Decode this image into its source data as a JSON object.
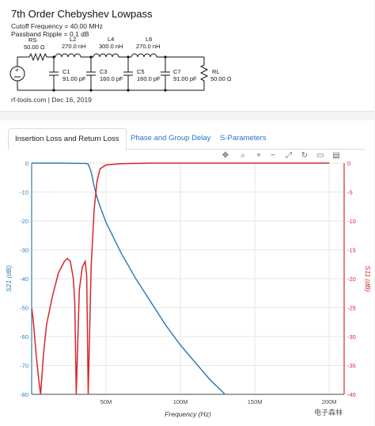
{
  "header": {
    "title": "7th Order Chebyshev Lowpass",
    "cutoff": "Cutoff Frequency = 40.00 MHz",
    "ripple": "Passband Ripple = 0.1 dB",
    "credit": "rf-tools.com | Dec 16, 2019"
  },
  "schematic": {
    "rs": {
      "name": "RS",
      "value": "50.00 Ω"
    },
    "l2": {
      "name": "L2",
      "value": "270.0 nH"
    },
    "l4": {
      "name": "L4",
      "value": "300.0 nH"
    },
    "l6": {
      "name": "L6",
      "value": "270.0 nH"
    },
    "c1": {
      "name": "C1",
      "value": "91.00 pF"
    },
    "c3": {
      "name": "C3",
      "value": "160.0 pF"
    },
    "c5": {
      "name": "C5",
      "value": "160.0 pF"
    },
    "c7": {
      "name": "C7",
      "value": "91.00 pF"
    },
    "rl": {
      "name": "RL",
      "value": "50.00 Ω"
    },
    "source_plus": "+"
  },
  "tabs": [
    {
      "label": "Insertion Loss and Return Loss",
      "active": true
    },
    {
      "label": "Phase and Group Delay",
      "active": false
    },
    {
      "label": "S-Parameters",
      "active": false
    }
  ],
  "toolbar": {
    "icons": [
      "pan-icon",
      "zoom-icon",
      "zoom-in-icon",
      "zoom-out-icon",
      "autoscale-icon",
      "reset-icon",
      "hover-icon",
      "compare-icon"
    ]
  },
  "watermark": "电子森林",
  "colors": {
    "s21": "#2f7fb5",
    "s11": "#d62728",
    "s11_axis": "#d62728",
    "s21_axis": "#2f7fb5"
  },
  "chart_data": {
    "type": "line",
    "xlabel": "Frequency (Hz)",
    "ylabel_left": "S21 (dB)",
    "ylabel_right": "S11 (dB)",
    "x_ticks": [
      "50M",
      "100M",
      "150M",
      "200M"
    ],
    "x_tick_values": [
      50,
      100,
      150,
      200
    ],
    "xlim": [
      0,
      210
    ],
    "y_left_ticks": [
      0,
      -10,
      -20,
      -30,
      -40,
      -50,
      -60,
      -70,
      -80
    ],
    "ylim_left": [
      -80,
      0
    ],
    "y_right_ticks": [
      0,
      -5,
      -10,
      -15,
      -20,
      -25,
      -30,
      -35,
      -40
    ],
    "ylim_right": [
      -40,
      0
    ],
    "grid": true,
    "legend": "none",
    "series": [
      {
        "name": "S21",
        "axis": "left",
        "x": [
          0,
          10,
          20,
          30,
          36,
          38,
          40,
          42,
          44,
          46,
          50,
          60,
          70,
          80,
          90,
          100,
          110,
          120,
          130,
          140
        ],
        "values": [
          0,
          0,
          0,
          -0.1,
          -0.1,
          -0.3,
          -3,
          -8,
          -12,
          -15,
          -20.5,
          -31,
          -40,
          -48,
          -56,
          -63,
          -69,
          -75,
          -80,
          -85
        ]
      },
      {
        "name": "S11",
        "axis": "right",
        "x": [
          0,
          1,
          3,
          5,
          6,
          8,
          10,
          14,
          18,
          22,
          24,
          26,
          28,
          29,
          30,
          32,
          34,
          36,
          37,
          38,
          40,
          42,
          44,
          46,
          50,
          60,
          80,
          120,
          160,
          200
        ],
        "values": [
          -25,
          -27,
          -33,
          -38,
          -40,
          -33,
          -28,
          -23,
          -19,
          -17,
          -16.5,
          -17,
          -20,
          -24,
          -40,
          -22,
          -18,
          -17,
          -19.5,
          -40,
          -18,
          -8,
          -3,
          -1,
          -0.3,
          -0.1,
          0,
          0,
          0,
          0
        ]
      }
    ]
  }
}
